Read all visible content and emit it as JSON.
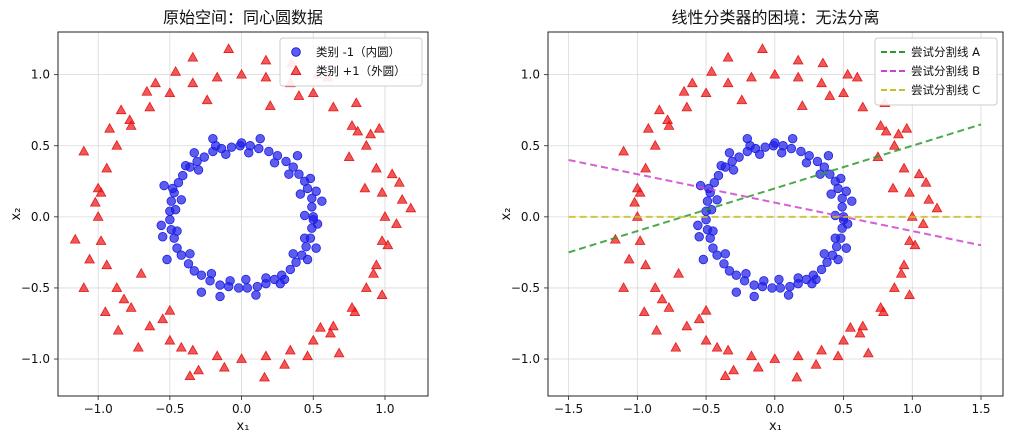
{
  "chart_data": [
    {
      "type": "scatter",
      "title": "原始空间：同心圆数据",
      "xlabel": "x₁",
      "ylabel": "x₂",
      "xlim": [
        -1.28,
        1.3
      ],
      "ylim": [
        -1.26,
        1.3
      ],
      "xticks": [
        -1.0,
        -0.5,
        0.0,
        0.5,
        1.0
      ],
      "xtick_labels": [
        "−1.0",
        "−0.5",
        "0.0",
        "0.5",
        "1.0"
      ],
      "yticks": [
        -1.0,
        -0.5,
        0.0,
        0.5,
        1.0
      ],
      "ytick_labels": [
        "−1.0",
        "−0.5",
        "0.0",
        "0.5",
        "1.0"
      ],
      "grid": true,
      "legend": "top-right",
      "series": [
        {
          "name": "类别 -1（内圆）",
          "marker": "circle",
          "color": "#1f1fe6",
          "points": [
            [
              0.5,
              0.0
            ],
            [
              0.49,
              0.07
            ],
            [
              0.49,
              0.13
            ],
            [
              0.46,
              0.2
            ],
            [
              0.44,
              0.25
            ],
            [
              0.4,
              0.3
            ],
            [
              0.36,
              0.35
            ],
            [
              0.31,
              0.39
            ],
            [
              0.25,
              0.43
            ],
            [
              0.19,
              0.46
            ],
            [
              0.12,
              0.48
            ],
            [
              0.06,
              0.5
            ],
            [
              -0.01,
              0.5
            ],
            [
              -0.07,
              0.49
            ],
            [
              -0.14,
              0.48
            ],
            [
              -0.2,
              0.46
            ],
            [
              -0.26,
              0.42
            ],
            [
              -0.31,
              0.39
            ],
            [
              -0.36,
              0.35
            ],
            [
              -0.41,
              0.29
            ],
            [
              -0.44,
              0.24
            ],
            [
              -0.47,
              0.17
            ],
            [
              -0.49,
              0.11
            ],
            [
              -0.5,
              0.04
            ],
            [
              -0.5,
              -0.02
            ],
            [
              -0.49,
              -0.09
            ],
            [
              -0.47,
              -0.15
            ],
            [
              -0.45,
              -0.22
            ],
            [
              -0.42,
              -0.27
            ],
            [
              -0.37,
              -0.33
            ],
            [
              -0.33,
              -0.38
            ],
            [
              -0.28,
              -0.41
            ],
            [
              -0.22,
              -0.45
            ],
            [
              -0.15,
              -0.48
            ],
            [
              -0.09,
              -0.49
            ],
            [
              -0.02,
              -0.5
            ],
            [
              0.04,
              -0.5
            ],
            [
              0.11,
              -0.49
            ],
            [
              0.17,
              -0.47
            ],
            [
              0.23,
              -0.44
            ],
            [
              0.28,
              -0.41
            ],
            [
              0.34,
              -0.37
            ],
            [
              0.38,
              -0.32
            ],
            [
              0.42,
              -0.27
            ],
            [
              0.45,
              -0.21
            ],
            [
              0.48,
              -0.15
            ],
            [
              0.49,
              -0.08
            ],
            [
              0.5,
              -0.02
            ],
            [
              0.56,
              0.11
            ],
            [
              0.13,
              0.55
            ],
            [
              -0.2,
              0.55
            ],
            [
              -0.54,
              0.22
            ],
            [
              -0.55,
              -0.14
            ],
            [
              -0.28,
              -0.53
            ],
            [
              0.1,
              -0.55
            ],
            [
              0.46,
              -0.3
            ],
            [
              0.53,
              -0.05
            ],
            [
              0.39,
              0.43
            ],
            [
              -0.33,
              0.45
            ],
            [
              -0.56,
              -0.06
            ],
            [
              -0.15,
              -0.56
            ],
            [
              0.27,
              -0.47
            ],
            [
              0.44,
              0.01
            ],
            [
              0.05,
              0.45
            ],
            [
              -0.42,
              0.12
            ],
            [
              -0.21,
              -0.4
            ],
            [
              0.36,
              -0.26
            ],
            [
              0.23,
              0.38
            ],
            [
              -0.3,
              0.33
            ],
            [
              -0.45,
              -0.1
            ],
            [
              0.03,
              -0.44
            ],
            [
              0.44,
              -0.15
            ],
            [
              0.41,
              0.16
            ],
            [
              -0.11,
              0.44
            ],
            [
              -0.46,
              0.05
            ],
            [
              -0.08,
              -0.45
            ],
            [
              0.33,
              0.3
            ],
            [
              -0.36,
              -0.26
            ],
            [
              0.17,
              -0.43
            ],
            [
              0.52,
              0.18
            ],
            [
              -0.52,
              -0.3
            ],
            [
              0.0,
              0.52
            ],
            [
              0.3,
              -0.44
            ],
            [
              -0.39,
              0.36
            ],
            [
              0.48,
              0.27
            ],
            [
              -0.18,
              0.5
            ],
            [
              0.52,
              -0.22
            ],
            [
              -0.48,
              0.2
            ]
          ]
        },
        {
          "name": "类别 +1（外圆）",
          "marker": "triangle",
          "color": "#e81818",
          "points": [
            [
              1.0,
              0.0
            ],
            [
              0.98,
              0.17
            ],
            [
              0.94,
              0.34
            ],
            [
              0.87,
              0.5
            ],
            [
              0.77,
              0.64
            ],
            [
              0.64,
              0.77
            ],
            [
              0.5,
              0.87
            ],
            [
              0.34,
              0.94
            ],
            [
              0.17,
              0.98
            ],
            [
              0.0,
              1.0
            ],
            [
              -0.17,
              0.98
            ],
            [
              -0.34,
              0.94
            ],
            [
              -0.5,
              0.87
            ],
            [
              -0.64,
              0.77
            ],
            [
              -0.77,
              0.64
            ],
            [
              -0.87,
              0.5
            ],
            [
              -0.94,
              0.34
            ],
            [
              -0.98,
              0.17
            ],
            [
              -1.0,
              0.0
            ],
            [
              -0.98,
              -0.17
            ],
            [
              -0.94,
              -0.34
            ],
            [
              -0.87,
              -0.5
            ],
            [
              -0.77,
              -0.64
            ],
            [
              -0.64,
              -0.77
            ],
            [
              -0.5,
              -0.87
            ],
            [
              -0.34,
              -0.94
            ],
            [
              -0.17,
              -0.98
            ],
            [
              0.0,
              -1.0
            ],
            [
              0.17,
              -0.98
            ],
            [
              0.34,
              -0.94
            ],
            [
              0.5,
              -0.87
            ],
            [
              0.64,
              -0.77
            ],
            [
              0.77,
              -0.64
            ],
            [
              0.87,
              -0.5
            ],
            [
              0.94,
              -0.34
            ],
            [
              0.98,
              -0.17
            ],
            [
              1.1,
              0.24
            ],
            [
              1.18,
              0.06
            ],
            [
              1.05,
              0.3
            ],
            [
              0.96,
              0.62
            ],
            [
              0.81,
              0.6
            ],
            [
              0.9,
              0.58
            ],
            [
              0.53,
              1.0
            ],
            [
              0.17,
              1.1
            ],
            [
              -0.09,
              1.18
            ],
            [
              -0.46,
              1.02
            ],
            [
              -0.84,
              0.75
            ],
            [
              -0.92,
              0.62
            ],
            [
              -1.1,
              0.46
            ],
            [
              -1.16,
              -0.16
            ],
            [
              -1.1,
              -0.5
            ],
            [
              -0.95,
              -0.67
            ],
            [
              -0.86,
              -0.8
            ],
            [
              -0.55,
              -0.72
            ],
            [
              -0.5,
              -0.66
            ],
            [
              -0.36,
              -1.12
            ],
            [
              -0.3,
              -1.08
            ],
            [
              0.16,
              -1.13
            ],
            [
              0.46,
              -0.98
            ],
            [
              0.62,
              -0.82
            ],
            [
              0.79,
              -0.67
            ],
            [
              0.92,
              -0.4
            ],
            [
              1.02,
              -0.2
            ],
            [
              1.12,
              0.12
            ],
            [
              0.6,
              0.98
            ],
            [
              -0.6,
              0.94
            ],
            [
              -0.66,
              0.88
            ],
            [
              -0.34,
              1.12
            ],
            [
              0.35,
              1.08
            ],
            [
              -1.0,
              0.2
            ],
            [
              -1.06,
              -0.3
            ],
            [
              0.98,
              -0.55
            ],
            [
              0.68,
              -0.96
            ],
            [
              -0.12,
              -1.06
            ],
            [
              -0.72,
              -0.92
            ],
            [
              1.08,
              -0.05
            ],
            [
              0.8,
              0.8
            ],
            [
              -0.78,
              0.68
            ],
            [
              -1.02,
              0.1
            ],
            [
              -0.42,
              -0.92
            ],
            [
              0.3,
              -1.04
            ],
            [
              0.75,
              0.42
            ],
            [
              -0.82,
              -0.58
            ],
            [
              0.4,
              0.85
            ],
            [
              -0.24,
              0.82
            ],
            [
              0.86,
              0.2
            ],
            [
              -0.7,
              -0.4
            ],
            [
              0.2,
              0.78
            ],
            [
              0.55,
              -0.78
            ]
          ]
        }
      ]
    },
    {
      "type": "scatter",
      "title": "线性分类器的困境：无法分离",
      "xlabel": "x₁",
      "ylabel": "x₂",
      "xlim": [
        -1.65,
        1.66
      ],
      "ylim": [
        -1.26,
        1.3
      ],
      "xticks": [
        -1.5,
        -1.0,
        -0.5,
        0.0,
        0.5,
        1.0,
        1.5
      ],
      "xtick_labels": [
        "−1.5",
        "−1.0",
        "−0.5",
        "0.0",
        "0.5",
        "1.0",
        "1.5"
      ],
      "yticks": [
        -1.0,
        -0.5,
        0.0,
        0.5,
        1.0
      ],
      "ytick_labels": [
        "−1.0",
        "−0.5",
        "0.0",
        "0.5",
        "1.0"
      ],
      "grid": true,
      "legend": "top-right",
      "lines": [
        {
          "name": "尝试分割线 A",
          "color": "#2e9a2e",
          "x": [
            -1.5,
            1.5
          ],
          "y": [
            -0.25,
            0.65
          ]
        },
        {
          "name": "尝试分割线 B",
          "color": "#cc44cc",
          "x": [
            -1.5,
            1.5
          ],
          "y": [
            0.4,
            -0.2
          ]
        },
        {
          "name": "尝试分割线 C",
          "color": "#c9c028",
          "x": [
            -1.5,
            1.5
          ],
          "y": [
            0.0,
            0.0
          ]
        }
      ]
    }
  ]
}
